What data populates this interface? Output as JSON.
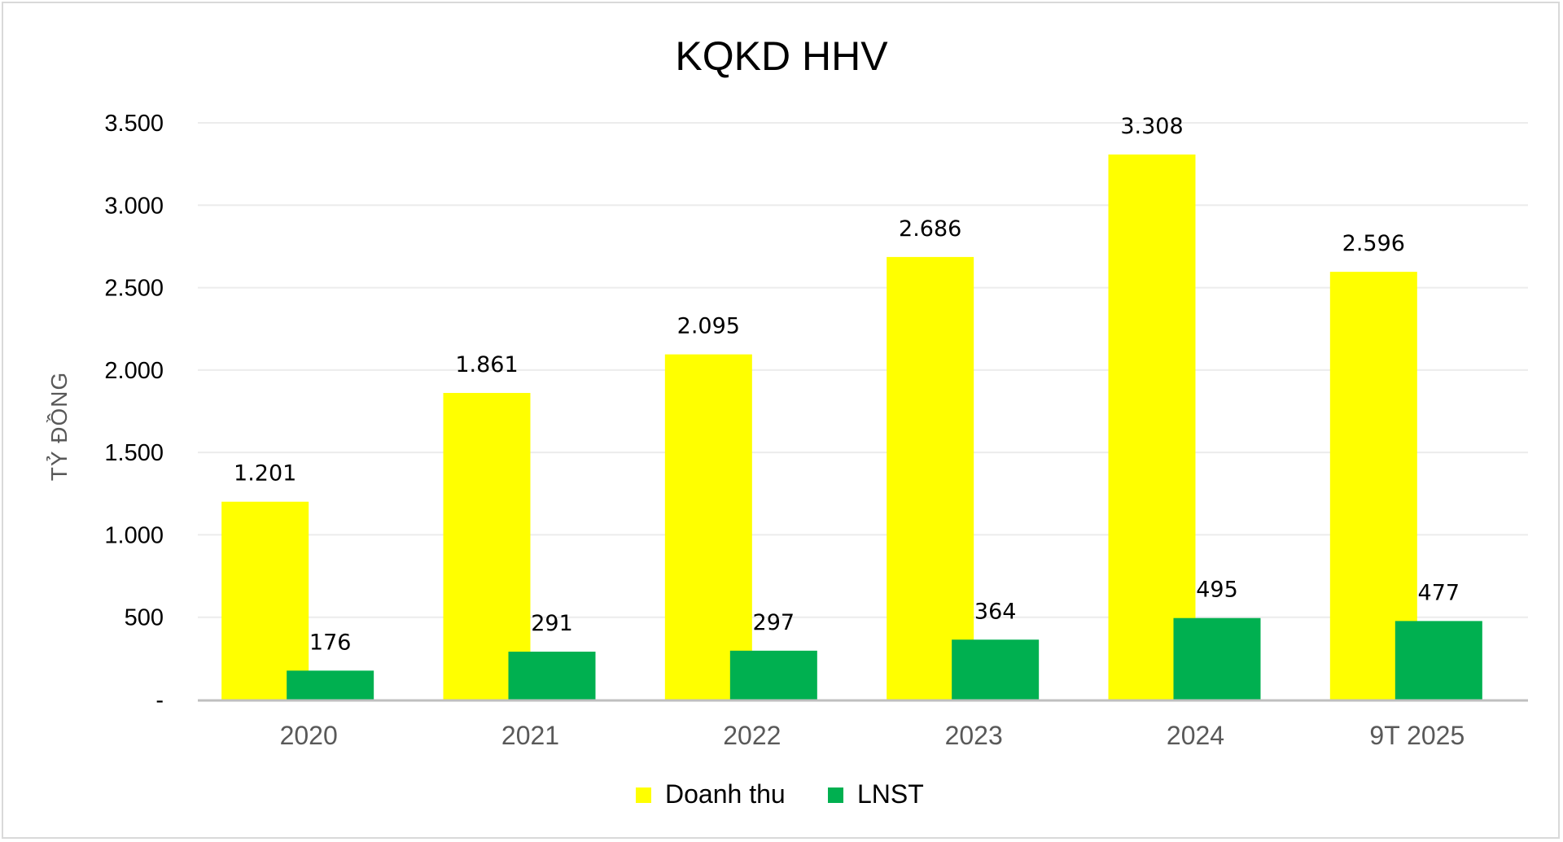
{
  "chart_data": {
    "type": "bar",
    "title": "KQKD HHV",
    "ylabel": "TỶ ĐỒNG",
    "xlabel": "",
    "categories": [
      "2020",
      "2021",
      "2022",
      "2023",
      "2024",
      "9T 2025"
    ],
    "series": [
      {
        "name": "Doanh thu",
        "color": "#FFFF00",
        "values": [
          1201,
          1861,
          2095,
          2686,
          3308,
          2596
        ],
        "labels": [
          "1.201",
          "1.861",
          "2.095",
          "2.686",
          "3.308",
          "2.596"
        ]
      },
      {
        "name": "LNST",
        "color": "#00B050",
        "values": [
          176,
          291,
          297,
          364,
          495,
          477
        ],
        "labels": [
          "176",
          "291",
          "297",
          "364",
          "495",
          "477"
        ]
      }
    ],
    "ylim": [
      0,
      3500
    ],
    "yticks": [
      0,
      500,
      1000,
      1500,
      2000,
      2500,
      3000,
      3500
    ],
    "ytick_labels": [
      "-",
      "500",
      "1.000",
      "1.500",
      "2.000",
      "2.500",
      "3.000",
      "3.500"
    ],
    "grid": true,
    "legend_position": "bottom-center"
  }
}
